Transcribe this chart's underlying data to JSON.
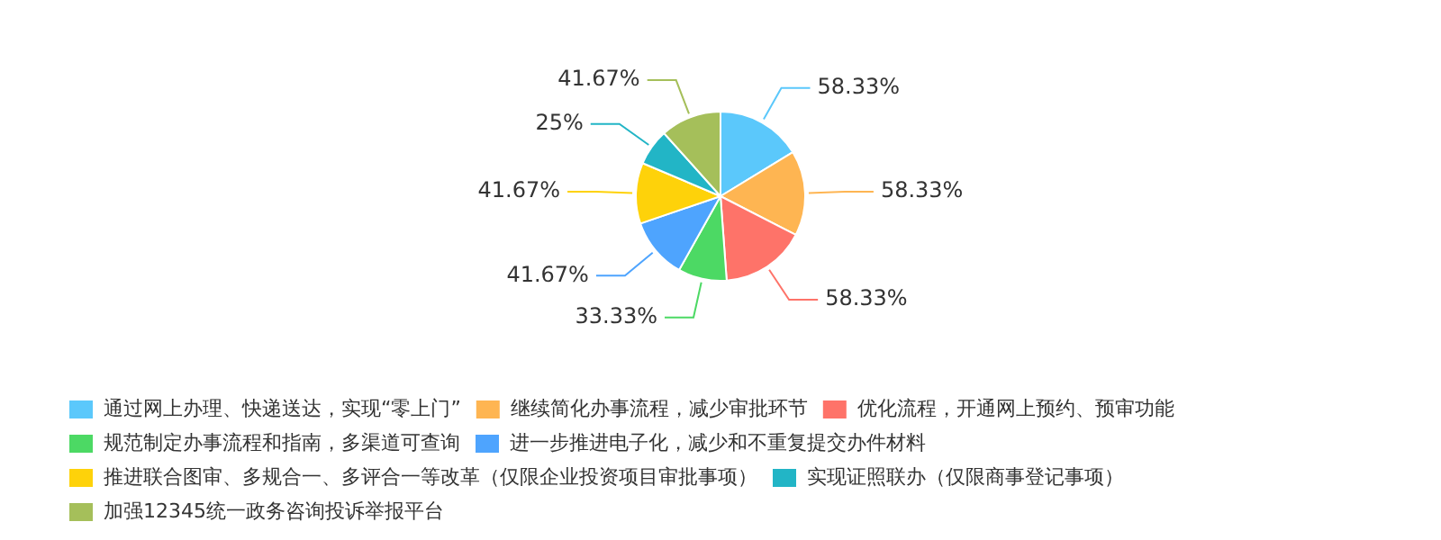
{
  "chart_data": {
    "type": "pie",
    "categories": [
      "通过网上办理、快递送达，实现“零上门”",
      "继续简化办事流程，减少审批环节",
      "优化流程，开通网上预约、预审功能",
      "规范制定办事流程和指南，多渠道可查询",
      "进一步推进电子化，减少和不重复提交办件材料",
      "推进联合图审、多规合一、多评合一等改革（仅限企业投资项目审批事项）",
      "实现证照联办（仅限商事登记事项）",
      "加强12345统一政务咨询投诉举报平台"
    ],
    "values": [
      58.33,
      58.33,
      58.33,
      33.33,
      41.67,
      41.67,
      25,
      41.67
    ],
    "value_labels": [
      "58.33%",
      "58.33%",
      "58.33%",
      "33.33%",
      "41.67%",
      "41.67%",
      "25%",
      "41.67%"
    ],
    "colors": [
      "#5bc8fb",
      "#feb552",
      "#fe7369",
      "#4cd964",
      "#4ea4fe",
      "#fed20a",
      "#22b5c6",
      "#a5bf5a"
    ],
    "legend": "bottom"
  }
}
